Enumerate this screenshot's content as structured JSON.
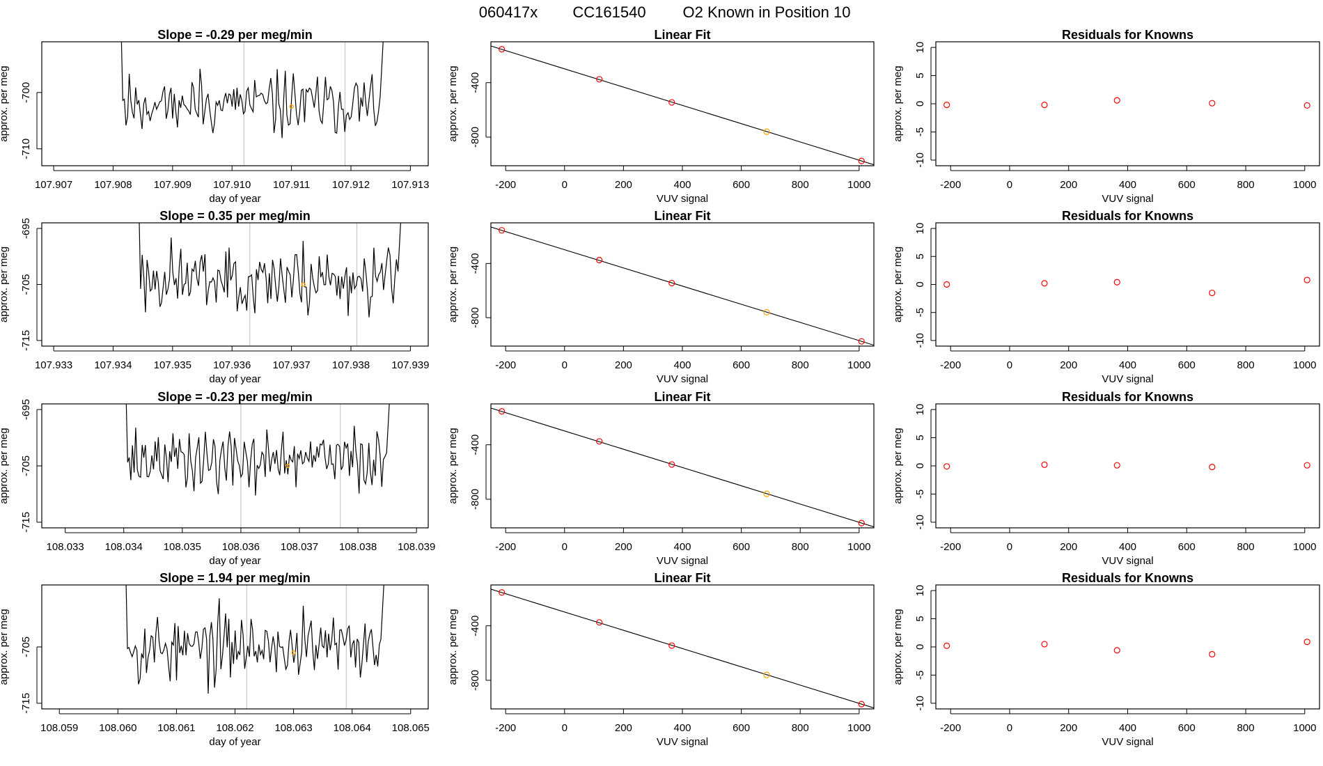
{
  "figure": {
    "title_parts": [
      "060417x",
      "CC161540",
      "O2 Known in Position  10"
    ]
  },
  "colors": {
    "line": "#000000",
    "grid": "#bebebe",
    "highlight": "#ffa500",
    "resid": "#ff0000",
    "point": "#ff0000"
  },
  "chart_data": [
    {
      "type": "line",
      "id": "r1-trace",
      "title": "Slope =  -0.29  per meg/min",
      "xlabel": "day of year",
      "ylabel": "approx. per meg",
      "xlim": [
        107.9068,
        107.9133
      ],
      "ylim": [
        -713,
        -691
      ],
      "xticks": [
        "107.907",
        "107.908",
        "107.909",
        "107.910",
        "107.911",
        "107.912",
        "107.913"
      ],
      "xtick_values": [
        107.907,
        107.908,
        107.909,
        107.91,
        107.911,
        107.912,
        107.913
      ],
      "yticks": [
        "-700",
        "-710"
      ],
      "ytick_values": [
        -700,
        -710
      ],
      "vlines": [
        107.9102,
        107.9119
      ],
      "start": 107.908,
      "end": 107.9126,
      "mean": -702,
      "spread": 2.8,
      "seed": 11,
      "highlight_x": 107.911,
      "highlight_y": -702.5
    },
    {
      "type": "scatter",
      "id": "r1-fit",
      "title": "Linear Fit",
      "xlabel": "VUV signal",
      "ylabel": "approx. per meg",
      "xlim": [
        -250,
        1050
      ],
      "ylim": [
        -1010,
        -100
      ],
      "xticks": [
        "-200",
        "0",
        "200",
        "400",
        "600",
        "800",
        "1000"
      ],
      "xtick_values": [
        -200,
        0,
        200,
        400,
        600,
        800,
        1000
      ],
      "yticks": [
        "-400",
        "-800"
      ],
      "ytick_values": [
        -400,
        -800
      ],
      "points": [
        [
          -213,
          -155
        ],
        [
          118,
          -375
        ],
        [
          364,
          -545
        ],
        [
          686,
          -760
        ],
        [
          1008,
          -975
        ]
      ],
      "highlight_index": 3,
      "fit_line": [
        [
          -250,
          -131
        ],
        [
          1050,
          -1003
        ]
      ]
    },
    {
      "type": "scatter",
      "id": "r1-resid",
      "title": "Residuals for Knowns",
      "xlabel": "VUV signal",
      "ylabel": "approx. per meg",
      "xlim": [
        -250,
        1050
      ],
      "ylim": [
        -11,
        11
      ],
      "xticks": [
        "-200",
        "0",
        "200",
        "400",
        "600",
        "800",
        "1000"
      ],
      "xtick_values": [
        -200,
        0,
        200,
        400,
        600,
        800,
        1000
      ],
      "yticks": [
        "10",
        "5",
        "0",
        "-5",
        "-10"
      ],
      "ytick_values": [
        10,
        5,
        0,
        -5,
        -10
      ],
      "points": [
        [
          -213,
          -0.2
        ],
        [
          118,
          -0.2
        ],
        [
          364,
          0.6
        ],
        [
          686,
          0.1
        ],
        [
          1008,
          -0.3
        ]
      ]
    },
    {
      "type": "line",
      "id": "r2-trace",
      "title": "Slope =  0.35  per meg/min",
      "xlabel": "day of year",
      "ylabel": "approx. per meg",
      "xlim": [
        107.9328,
        107.9393
      ],
      "ylim": [
        -716,
        -694
      ],
      "xticks": [
        "107.933",
        "107.934",
        "107.935",
        "107.936",
        "107.937",
        "107.938",
        "107.939"
      ],
      "xtick_values": [
        107.933,
        107.934,
        107.935,
        107.936,
        107.937,
        107.938,
        107.939
      ],
      "yticks": [
        "-695",
        "-705",
        "-715"
      ],
      "ytick_values": [
        -695,
        -705,
        -715
      ],
      "vlines": [
        107.9363,
        107.9381
      ],
      "start": 107.9343,
      "end": 107.9389,
      "mean": -704,
      "spread": 3.2,
      "seed": 23,
      "highlight_x": 107.9372,
      "highlight_y": -705
    },
    {
      "type": "scatter",
      "id": "r2-fit",
      "title": "Linear Fit",
      "xlabel": "VUV signal",
      "ylabel": "approx. per meg",
      "xlim": [
        -250,
        1050
      ],
      "ylim": [
        -1010,
        -100
      ],
      "xticks": [
        "-200",
        "0",
        "200",
        "400",
        "600",
        "800",
        "1000"
      ],
      "xtick_values": [
        -200,
        0,
        200,
        400,
        600,
        800,
        1000
      ],
      "yticks": [
        "-400",
        "-800"
      ],
      "ytick_values": [
        -400,
        -800
      ],
      "points": [
        [
          -213,
          -155
        ],
        [
          118,
          -375
        ],
        [
          364,
          -545
        ],
        [
          686,
          -760
        ],
        [
          1008,
          -975
        ]
      ],
      "highlight_index": 3,
      "fit_line": [
        [
          -250,
          -131
        ],
        [
          1050,
          -1003
        ]
      ]
    },
    {
      "type": "scatter",
      "id": "r2-resid",
      "title": "Residuals for Knowns",
      "xlabel": "VUV signal",
      "ylabel": "approx. per meg",
      "xlim": [
        -250,
        1050
      ],
      "ylim": [
        -11,
        11
      ],
      "xticks": [
        "-200",
        "0",
        "200",
        "400",
        "600",
        "800",
        "1000"
      ],
      "xtick_values": [
        -200,
        0,
        200,
        400,
        600,
        800,
        1000
      ],
      "yticks": [
        "10",
        "5",
        "0",
        "-5",
        "-10"
      ],
      "ytick_values": [
        10,
        5,
        0,
        -5,
        -10
      ],
      "points": [
        [
          -213,
          0.0
        ],
        [
          118,
          0.2
        ],
        [
          364,
          0.4
        ],
        [
          686,
          -1.5
        ],
        [
          1008,
          0.8
        ]
      ]
    },
    {
      "type": "line",
      "id": "r3-trace",
      "title": "Slope =  -0.23  per meg/min",
      "xlabel": "day of year",
      "ylabel": "approx. per meg",
      "xlim": [
        108.0326,
        108.0392
      ],
      "ylim": [
        -716,
        -694
      ],
      "xticks": [
        "108.033",
        "108.034",
        "108.035",
        "108.036",
        "108.037",
        "108.038",
        "108.039"
      ],
      "xtick_values": [
        108.033,
        108.034,
        108.035,
        108.036,
        108.037,
        108.038,
        108.039
      ],
      "yticks": [
        "-695",
        "-705",
        "-715"
      ],
      "ytick_values": [
        -695,
        -705,
        -715
      ],
      "vlines": [
        108.036,
        108.0377
      ],
      "start": 108.0339,
      "end": 108.0386,
      "mean": -704,
      "spread": 3.0,
      "seed": 37,
      "highlight_x": 108.0368,
      "highlight_y": -705
    },
    {
      "type": "scatter",
      "id": "r3-fit",
      "title": "Linear Fit",
      "xlabel": "VUV signal",
      "ylabel": "approx. per meg",
      "xlim": [
        -250,
        1050
      ],
      "ylim": [
        -1010,
        -100
      ],
      "xticks": [
        "-200",
        "0",
        "200",
        "400",
        "600",
        "800",
        "1000"
      ],
      "xtick_values": [
        -200,
        0,
        200,
        400,
        600,
        800,
        1000
      ],
      "yticks": [
        "-400",
        "-800"
      ],
      "ytick_values": [
        -400,
        -800
      ],
      "points": [
        [
          -213,
          -155
        ],
        [
          118,
          -375
        ],
        [
          364,
          -545
        ],
        [
          686,
          -760
        ],
        [
          1008,
          -975
        ]
      ],
      "highlight_index": 3,
      "fit_line": [
        [
          -250,
          -131
        ],
        [
          1050,
          -1003
        ]
      ]
    },
    {
      "type": "scatter",
      "id": "r3-resid",
      "title": "Residuals for Knowns",
      "xlabel": "VUV signal",
      "ylabel": "approx. per meg",
      "xlim": [
        -250,
        1050
      ],
      "ylim": [
        -11,
        11
      ],
      "xticks": [
        "-200",
        "0",
        "200",
        "400",
        "600",
        "800",
        "1000"
      ],
      "xtick_values": [
        -200,
        0,
        200,
        400,
        600,
        800,
        1000
      ],
      "yticks": [
        "10",
        "5",
        "0",
        "-5",
        "-10"
      ],
      "ytick_values": [
        10,
        5,
        0,
        -5,
        -10
      ],
      "points": [
        [
          -213,
          -0.1
        ],
        [
          118,
          0.2
        ],
        [
          364,
          0.1
        ],
        [
          686,
          -0.2
        ],
        [
          1008,
          0.1
        ]
      ]
    },
    {
      "type": "line",
      "id": "r4-trace",
      "title": "Slope =  1.94  per meg/min",
      "xlabel": "day of year",
      "ylabel": "approx. per meg",
      "xlim": [
        108.0587,
        108.0653
      ],
      "ylim": [
        -716,
        -694
      ],
      "xticks": [
        "108.059",
        "108.060",
        "108.061",
        "108.062",
        "108.063",
        "108.064",
        "108.065"
      ],
      "xtick_values": [
        108.059,
        108.06,
        108.061,
        108.062,
        108.063,
        108.064,
        108.065
      ],
      "yticks": [
        "-705",
        "-715"
      ],
      "ytick_values": [
        -705,
        -715
      ],
      "vlines": [
        108.0622,
        108.0639
      ],
      "start": 108.06,
      "end": 108.0646,
      "mean": -705,
      "spread": 3.2,
      "seed": 53,
      "highlight_x": 108.063,
      "highlight_y": -706
    },
    {
      "type": "scatter",
      "id": "r4-fit",
      "title": "Linear Fit",
      "xlabel": "VUV signal",
      "ylabel": "approx. per meg",
      "xlim": [
        -250,
        1050
      ],
      "ylim": [
        -1010,
        -100
      ],
      "xticks": [
        "-200",
        "0",
        "200",
        "400",
        "600",
        "800",
        "1000"
      ],
      "xtick_values": [
        -200,
        0,
        200,
        400,
        600,
        800,
        1000
      ],
      "yticks": [
        "-400",
        "-800"
      ],
      "ytick_values": [
        -400,
        -800
      ],
      "points": [
        [
          -213,
          -155
        ],
        [
          118,
          -375
        ],
        [
          364,
          -545
        ],
        [
          686,
          -760
        ],
        [
          1008,
          -975
        ]
      ],
      "highlight_index": 3,
      "fit_line": [
        [
          -250,
          -131
        ],
        [
          1050,
          -1003
        ]
      ]
    },
    {
      "type": "scatter",
      "id": "r4-resid",
      "title": "Residuals for Knowns",
      "xlabel": "VUV signal",
      "ylabel": "approx. per meg",
      "xlim": [
        -250,
        1050
      ],
      "ylim": [
        -11,
        11
      ],
      "xticks": [
        "-200",
        "0",
        "200",
        "400",
        "600",
        "800",
        "1000"
      ],
      "xtick_values": [
        -200,
        0,
        200,
        400,
        600,
        800,
        1000
      ],
      "yticks": [
        "10",
        "5",
        "0",
        "-5",
        "-10"
      ],
      "ytick_values": [
        10,
        5,
        0,
        -5,
        -10
      ],
      "points": [
        [
          -213,
          0.2
        ],
        [
          118,
          0.5
        ],
        [
          364,
          -0.6
        ],
        [
          686,
          -1.3
        ],
        [
          1008,
          0.9
        ]
      ]
    }
  ]
}
